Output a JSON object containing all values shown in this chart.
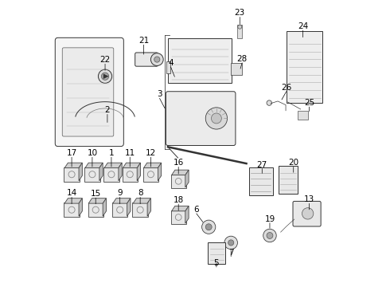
{
  "title": "",
  "bg_color": "#ffffff",
  "fig_width": 4.9,
  "fig_height": 3.6,
  "dpi": 100,
  "font_size": 7.5,
  "label_color": "#000000",
  "line_color": "#000000"
}
